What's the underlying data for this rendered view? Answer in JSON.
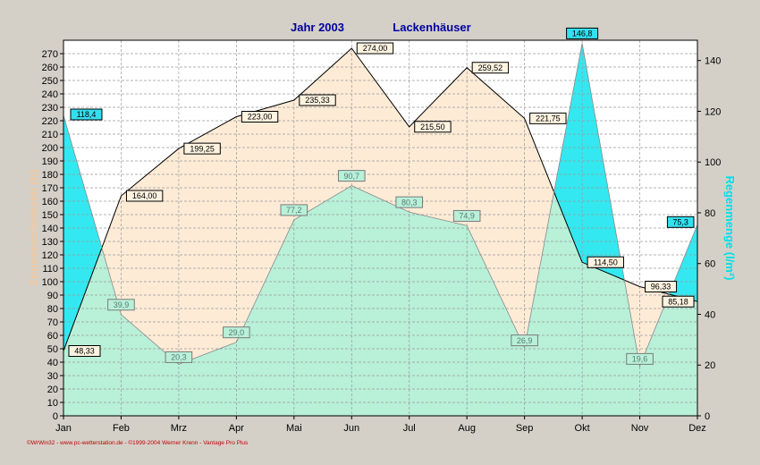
{
  "chart_data": {
    "type": "area",
    "title": "Jahr  2003",
    "subtitle": "Lackenhäuser",
    "categories": [
      "Jan",
      "Feb",
      "Mrz",
      "Apr",
      "Mai",
      "Jun",
      "Jul",
      "Aug",
      "Sep",
      "Okt",
      "Nov",
      "Dez"
    ],
    "ylabel_left": "Sonnenscheinzeit (h)",
    "ylabel_right": "Regenmenge (l/m²)",
    "ylim_left": [
      0,
      280
    ],
    "ylim_right": [
      0,
      148
    ],
    "yticks_left": [
      "0",
      "10",
      "20",
      "30",
      "40",
      "50",
      "60",
      "70",
      "80",
      "90",
      "100",
      "110",
      "120",
      "130",
      "140",
      "150",
      "160",
      "170",
      "180",
      "190",
      "200",
      "210",
      "220",
      "230",
      "240",
      "250",
      "260",
      "270"
    ],
    "yticks_right": [
      "0",
      "20",
      "40",
      "60",
      "80",
      "100",
      "120",
      "140"
    ],
    "grid": true,
    "series": [
      {
        "name": "Sonnenscheinzeit (h)",
        "axis": "left",
        "values": [
          48.33,
          164.0,
          199.25,
          223.0,
          235.33,
          274.0,
          215.5,
          259.52,
          221.75,
          114.5,
          96.33,
          85.18
        ],
        "labels": [
          "48,33",
          "164,00",
          "199,25",
          "223,00",
          "235,33",
          "274,00",
          "215,50",
          "259,52",
          "221,75",
          "114,50",
          "96,33",
          "85,18"
        ]
      },
      {
        "name": "Regenmenge (l/m²)",
        "axis": "right",
        "values": [
          118.4,
          39.9,
          20.3,
          29.0,
          77.2,
          90.7,
          80.3,
          74.9,
          26.9,
          146.8,
          19.6,
          75.3
        ],
        "labels": [
          "118,4",
          "39,9",
          "20,3",
          "29,0",
          "77,2",
          "90,7",
          "80,3",
          "74,9",
          "26,9",
          "146,8",
          "19,6",
          "75,3"
        ]
      }
    ],
    "colors": {
      "sun_fill": "#fdebd6",
      "rain_fill": "#33e8f0",
      "overlap_fill": "#b8f0d8",
      "sun_label_bg": "#fdf3e0",
      "rain_label_bg": "#33e0f0",
      "title": "#0000a0",
      "left_axis_title": "#f3c9a0",
      "right_axis_title": "#00e0e8",
      "footer": "#c00000"
    }
  },
  "footer": "©WrWin32 - www.pc-wetterstation.de - ©1999-2004 Werner Krenn - Vantage Pro Plus"
}
